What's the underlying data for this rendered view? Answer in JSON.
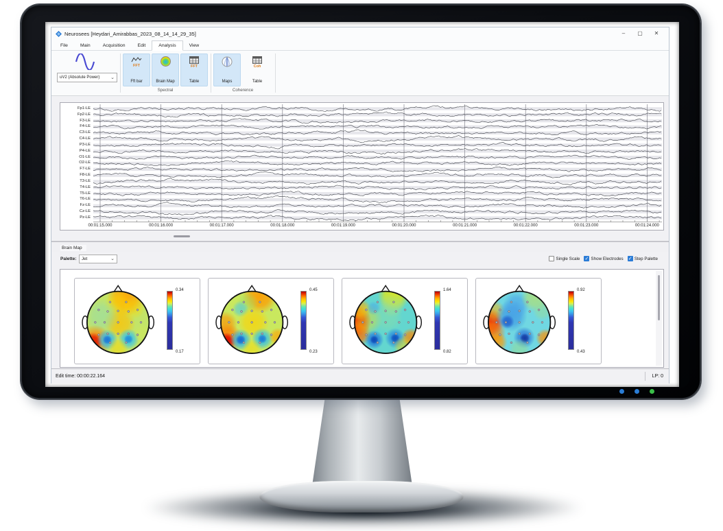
{
  "window": {
    "title": "Neurosees [Heydari_Amirabbas_2023_08_14_14_29_35]",
    "minimize": "–",
    "maximize": "▢",
    "close": "✕"
  },
  "menu": {
    "items": [
      "File",
      "Main",
      "Acquisition",
      "Edit",
      "Analysis",
      "View"
    ]
  },
  "ribbon": {
    "power_value": "uV2 (Absolute Power)",
    "spectral": {
      "label": "Spectral",
      "fft_bar": {
        "badge": "FFT",
        "label": "Fft bar"
      },
      "brain_map": {
        "label": "Brain Map"
      },
      "table": {
        "badge": "FFT",
        "label": "Table"
      }
    },
    "coherence": {
      "label": "Coherence",
      "maps": {
        "label": "Maps"
      },
      "table": {
        "badge": "Coh",
        "label": "Table"
      }
    }
  },
  "eeg": {
    "channels": [
      "Fp1-LE",
      "Fp2-LE",
      "F3-LE",
      "F4-LE",
      "C3-LE",
      "C4-LE",
      "P3-LE",
      "P4-LE",
      "O1-LE",
      "O2-LE",
      "F7-LE",
      "F8-LE",
      "T3-LE",
      "T4-LE",
      "T5-LE",
      "T6-LE",
      "Fz-LE",
      "Cz-LE",
      "Pz-LE"
    ],
    "time_labels": [
      "00:01:15.000",
      "00:01:16.000",
      "00:01:17.000",
      "00:01:18.000",
      "00:01:19.000",
      "00:01:20.000",
      "00:01:21.000",
      "00:01:22.000",
      "00:01:23.000",
      "00:01:24.000"
    ]
  },
  "brain_map": {
    "section_title": "Brain Map",
    "palette_label": "Palette:",
    "palette_value": "Jet",
    "single_scale_label": "Single Scale",
    "single_scale_checked": false,
    "show_electrodes_label": "Show Electrodes",
    "show_electrodes_checked": true,
    "step_palette_label": "Step Palette",
    "step_palette_checked": true,
    "maps": [
      {
        "max": "0.34",
        "min": "0.17"
      },
      {
        "max": "0.45",
        "min": "0.23"
      },
      {
        "max": "1.64",
        "min": "0.82"
      },
      {
        "max": "0.92",
        "min": "0.43"
      }
    ]
  },
  "status": {
    "edit_time": "Edit time: 00:00:22.164",
    "lp": "LP: 0"
  },
  "icons": {
    "chevron_down": "⌄"
  },
  "colors": {
    "accent_blue": "#2b7cd6",
    "badge_orange": "#e07f1e",
    "button_highlight": "#d3e7f8",
    "led_blue": "#2a7cd4",
    "led_green": "#3bbf49"
  }
}
